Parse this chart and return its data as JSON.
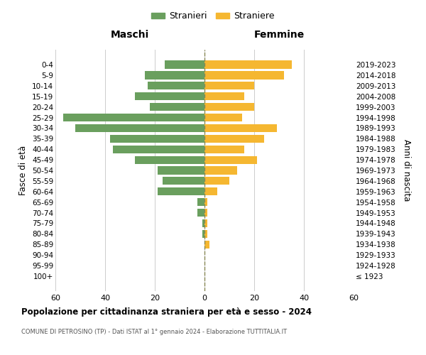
{
  "age_groups": [
    "100+",
    "95-99",
    "90-94",
    "85-89",
    "80-84",
    "75-79",
    "70-74",
    "65-69",
    "60-64",
    "55-59",
    "50-54",
    "45-49",
    "40-44",
    "35-39",
    "30-34",
    "25-29",
    "20-24",
    "15-19",
    "10-14",
    "5-9",
    "0-4"
  ],
  "birth_years": [
    "≤ 1923",
    "1924-1928",
    "1929-1933",
    "1934-1938",
    "1939-1943",
    "1944-1948",
    "1949-1953",
    "1954-1958",
    "1959-1963",
    "1964-1968",
    "1969-1973",
    "1974-1978",
    "1979-1983",
    "1984-1988",
    "1989-1993",
    "1994-1998",
    "1999-2003",
    "2004-2008",
    "2009-2013",
    "2014-2018",
    "2019-2023"
  ],
  "maschi": [
    0,
    0,
    0,
    0,
    1,
    1,
    3,
    3,
    19,
    17,
    19,
    28,
    37,
    38,
    52,
    57,
    22,
    28,
    23,
    24,
    16
  ],
  "femmine": [
    0,
    0,
    0,
    2,
    1,
    1,
    1,
    1,
    5,
    10,
    13,
    21,
    16,
    24,
    29,
    15,
    20,
    16,
    20,
    32,
    35
  ],
  "male_color": "#6a9f5e",
  "female_color": "#f5b731",
  "center_line_color": "#888855",
  "grid_color": "#cccccc",
  "title": "Popolazione per cittadinanza straniera per età e sesso - 2024",
  "subtitle": "COMUNE DI PETROSINO (TP) - Dati ISTAT al 1° gennaio 2024 - Elaborazione TUTTITALIA.IT",
  "xlabel_left": "Maschi",
  "xlabel_right": "Femmine",
  "ylabel_left": "Fasce di età",
  "ylabel_right": "Anni di nascita",
  "legend_male": "Stranieri",
  "legend_female": "Straniere",
  "xlim": 60,
  "background_color": "#ffffff"
}
